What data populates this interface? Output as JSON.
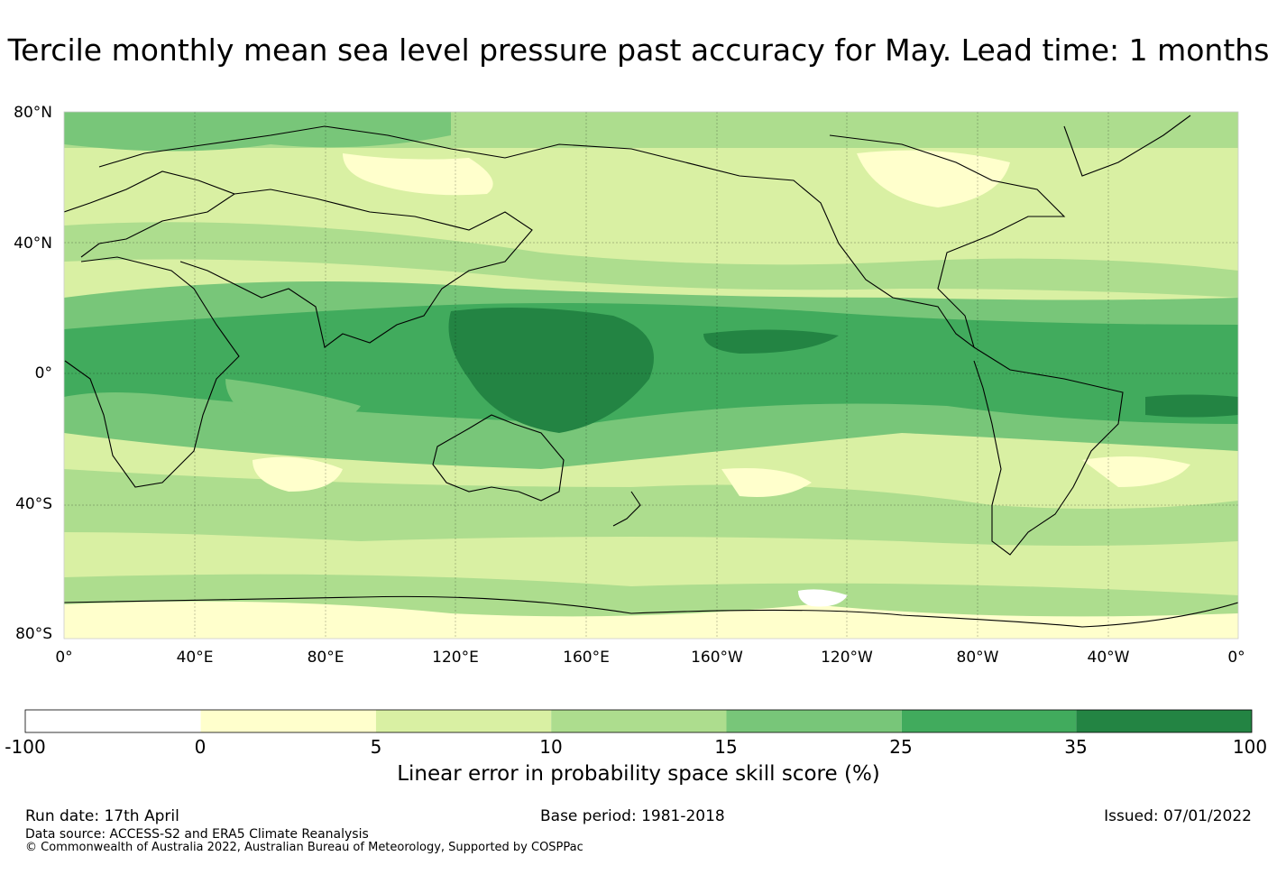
{
  "title": "Tercile monthly mean sea level pressure past accuracy for May. Lead time: 1 months",
  "map": {
    "lat_labels": [
      "80°N",
      "40°N",
      "0°",
      "40°S",
      "80°S"
    ],
    "lon_labels": [
      "0°",
      "40°E",
      "80°E",
      "120°E",
      "160°E",
      "160°W",
      "120°W",
      "80°W",
      "40°W",
      "0°"
    ]
  },
  "colorbar": {
    "ticks": [
      "-100",
      "0",
      "5",
      "10",
      "15",
      "25",
      "35",
      "100"
    ],
    "colors": [
      "#ffffff",
      "#ffffcc",
      "#d9f0a3",
      "#addd8e",
      "#78c679",
      "#41ab5d",
      "#238443"
    ],
    "label": "Linear error in probability space skill score (%)"
  },
  "footer": {
    "run_date": "Run date: 17th April",
    "base_period": "Base period: 1981-2018",
    "issued": "Issued: 07/01/2022",
    "data_source": "Data source: ACCESS-S2 and ERA5 Climate Reanalysis",
    "copyright": "© Commonwealth of Australia 2022, Australian Bureau of Meteorology, Supported by COSPPac"
  }
}
